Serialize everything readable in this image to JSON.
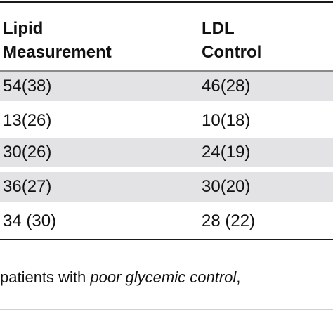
{
  "table": {
    "columns": [
      {
        "line1": "Lipid",
        "line2": "Measurement"
      },
      {
        "line1": "LDL",
        "line2": "Control"
      }
    ],
    "rows": [
      [
        "54(38)",
        "46(28)"
      ],
      [
        "13(26)",
        "10(18)"
      ],
      [
        "30(26)",
        "24(19)"
      ],
      [
        "36(27)",
        "30(20)"
      ],
      [
        "34 (30)",
        "28 (22)"
      ]
    ]
  },
  "footnote": {
    "prefix": "patients with ",
    "emphasis": "poor glycemic control",
    "suffix": ","
  }
}
